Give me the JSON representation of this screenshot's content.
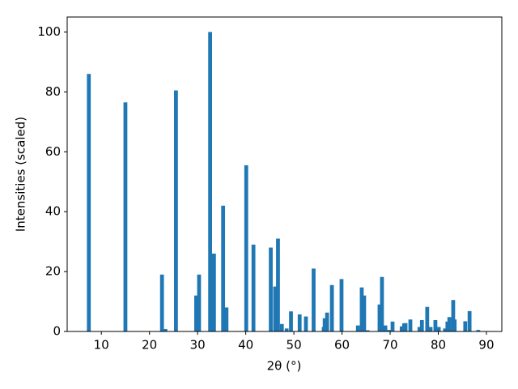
{
  "chart_data": {
    "type": "bar",
    "x": [
      7.4,
      15.0,
      22.6,
      23.3,
      25.5,
      29.7,
      30.3,
      32.6,
      33.4,
      35.3,
      36.0,
      40.1,
      41.6,
      45.2,
      46.1,
      46.7,
      47.5,
      48.5,
      49.4,
      51.2,
      52.5,
      54.1,
      56.2,
      56.4,
      56.9,
      57.9,
      59.9,
      63.3,
      64.1,
      64.6,
      65.3,
      67.8,
      68.3,
      69.0,
      69.7,
      70.5,
      72.4,
      72.9,
      73.2,
      74.2,
      76.1,
      76.6,
      77.7,
      78.4,
      79.4,
      80.1,
      81.4,
      81.9,
      82.3,
      83.1,
      83.4,
      85.6,
      86.5,
      88.3
    ],
    "values": [
      86,
      76.5,
      19,
      0.8,
      80.5,
      12,
      19,
      100,
      26,
      42,
      8,
      55.5,
      29,
      28,
      15,
      31,
      2.5,
      1,
      6.7,
      5.7,
      5,
      21,
      1.5,
      4.4,
      6.3,
      15.5,
      17.5,
      2,
      14.7,
      12,
      0.4,
      9,
      18.2,
      2,
      0.5,
      3.3,
      1.7,
      2.7,
      2.8,
      4,
      1.5,
      3.8,
      8.2,
      1.5,
      3.8,
      1.5,
      1,
      3.3,
      4.8,
      10.5,
      4,
      3.4,
      6.8,
      0.5
    ],
    "color": "#1f77b4",
    "xlabel": "2θ (°)",
    "ylabel": "Intensities (scaled)",
    "xlim": [
      2.9,
      93.2
    ],
    "ylim": [
      0,
      105
    ],
    "xticks": [
      10,
      20,
      30,
      40,
      50,
      60,
      70,
      80,
      90
    ],
    "yticks": [
      0,
      20,
      40,
      60,
      80,
      100
    ]
  }
}
